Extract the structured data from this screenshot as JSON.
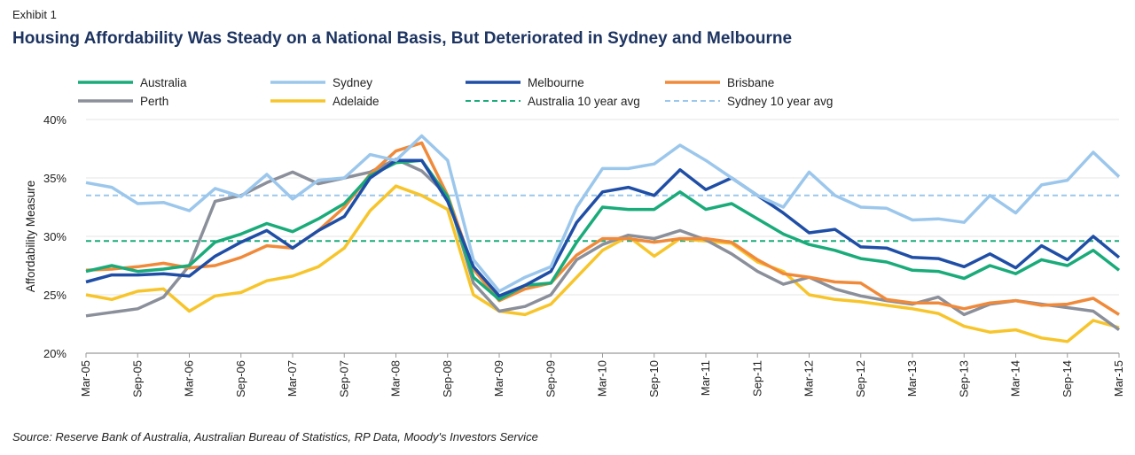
{
  "exhibit": "Exhibit 1",
  "title": "Housing Affordability Was Steady on a National Basis, But Deteriorated in Sydney and Melbourne",
  "source": "Source: Reserve Bank of Australia, Australian Bureau of Statistics, RP Data, Moody's Investors Service",
  "chart_data": {
    "type": "line",
    "title": "Housing Affordability Was Steady on a National Basis, But Deteriorated in Sydney and Melbourne",
    "ylabel": "Affordability Measure",
    "xlabel": "",
    "ylim": [
      20,
      40
    ],
    "yticks": [
      "20%",
      "25%",
      "30%",
      "35%",
      "40%"
    ],
    "ytick_values": [
      20,
      25,
      30,
      35,
      40
    ],
    "grid": true,
    "legend_position": "top",
    "xtick_labels": [
      "Mar-05",
      "Sep-05",
      "Mar-06",
      "Sep-06",
      "Mar-07",
      "Sep-07",
      "Mar-08",
      "Sep-08",
      "Mar-09",
      "Sep-09",
      "Mar-10",
      "Sep-10",
      "Mar-11",
      "Sep-11",
      "Mar-12",
      "Sep-12",
      "Mar-13",
      "Sep-13",
      "Mar-14",
      "Sep-14",
      "Mar-15"
    ],
    "x": [
      "Mar-05",
      "Jun-05",
      "Sep-05",
      "Dec-05",
      "Mar-06",
      "Jun-06",
      "Sep-06",
      "Dec-06",
      "Mar-07",
      "Jun-07",
      "Sep-07",
      "Dec-07",
      "Mar-08",
      "Jun-08",
      "Sep-08",
      "Dec-08",
      "Mar-09",
      "Jun-09",
      "Sep-09",
      "Dec-09",
      "Mar-10",
      "Jun-10",
      "Sep-10",
      "Dec-10",
      "Mar-11",
      "Jun-11",
      "Sep-11",
      "Dec-11",
      "Mar-12",
      "Jun-12",
      "Sep-12",
      "Dec-12",
      "Mar-13",
      "Jun-13",
      "Sep-13",
      "Dec-13",
      "Mar-14",
      "Jun-14",
      "Sep-14",
      "Dec-14",
      "Mar-15"
    ],
    "series": [
      {
        "name": "Australia",
        "color": "#1aab7a",
        "dashed": false,
        "values": [
          27.0,
          27.5,
          27.0,
          27.2,
          27.5,
          29.5,
          30.2,
          31.1,
          30.4,
          31.5,
          32.8,
          35.2,
          36.3,
          36.5,
          33.4,
          26.5,
          24.6,
          25.8,
          26.0,
          29.5,
          32.5,
          32.3,
          32.3,
          33.8,
          32.3,
          32.8,
          31.5,
          30.2,
          29.3,
          28.8,
          28.1,
          27.8,
          27.1,
          27.0,
          26.4,
          27.5,
          26.8,
          28.0,
          27.5,
          28.8,
          27.1
        ]
      },
      {
        "name": "Sydney",
        "color": "#9cc7ec",
        "dashed": false,
        "values": [
          34.6,
          34.2,
          32.8,
          32.9,
          32.2,
          34.1,
          33.4,
          35.3,
          33.2,
          34.8,
          35.0,
          37.0,
          36.5,
          38.6,
          36.5,
          28.0,
          25.3,
          26.5,
          27.4,
          32.5,
          35.8,
          35.8,
          36.2,
          37.8,
          36.5,
          35.0,
          33.5,
          32.5,
          35.5,
          33.5,
          32.5,
          32.4,
          31.4,
          31.5,
          31.2,
          33.5,
          32.0,
          34.4,
          34.8,
          37.2,
          35.1
        ]
      },
      {
        "name": "Melbourne",
        "color": "#1f4ea6",
        "dashed": false,
        "values": [
          26.1,
          26.7,
          26.7,
          26.8,
          26.6,
          28.3,
          29.5,
          30.5,
          29.0,
          30.5,
          31.7,
          35.0,
          36.5,
          36.5,
          33.0,
          27.4,
          24.9,
          25.8,
          27.0,
          31.2,
          33.8,
          34.2,
          33.5,
          35.7,
          34.0,
          35.0,
          33.5,
          32.0,
          30.3,
          30.6,
          29.1,
          29.0,
          28.2,
          28.1,
          27.4,
          28.5,
          27.3,
          29.2,
          28.0,
          30.0,
          28.2
        ]
      },
      {
        "name": "Brisbane",
        "color": "#f08a3a",
        "dashed": false,
        "values": [
          27.1,
          27.2,
          27.4,
          27.7,
          27.3,
          27.5,
          28.2,
          29.2,
          29.0,
          30.5,
          32.5,
          35.3,
          37.3,
          38.0,
          33.5,
          27.2,
          24.5,
          25.5,
          26.0,
          28.4,
          29.8,
          29.8,
          29.5,
          29.8,
          29.8,
          29.5,
          28.0,
          26.8,
          26.5,
          26.1,
          26.0,
          24.6,
          24.3,
          24.3,
          23.8,
          24.3,
          24.5,
          24.1,
          24.2,
          24.7,
          23.3
        ]
      },
      {
        "name": "Perth",
        "color": "#8a8f9a",
        "dashed": false,
        "values": [
          23.2,
          23.5,
          23.8,
          24.8,
          27.5,
          33.0,
          33.5,
          34.6,
          35.5,
          34.5,
          35.0,
          35.5,
          36.6,
          35.6,
          33.5,
          26.0,
          23.6,
          24.0,
          25.0,
          28.0,
          29.3,
          30.1,
          29.8,
          30.5,
          29.7,
          28.5,
          27.0,
          25.9,
          26.5,
          25.5,
          24.9,
          24.5,
          24.2,
          24.8,
          23.3,
          24.2,
          24.5,
          24.2,
          23.9,
          23.6,
          22.0
        ]
      },
      {
        "name": "Adelaide",
        "color": "#f7c52b",
        "dashed": false,
        "values": [
          25.0,
          24.6,
          25.3,
          25.5,
          23.6,
          24.9,
          25.2,
          26.2,
          26.6,
          27.4,
          29.0,
          32.2,
          34.3,
          33.5,
          32.3,
          25.0,
          23.6,
          23.3,
          24.2,
          26.5,
          28.8,
          30.0,
          28.3,
          29.8,
          29.6,
          29.4,
          27.8,
          27.0,
          25.0,
          24.6,
          24.4,
          24.1,
          23.8,
          23.4,
          22.3,
          21.8,
          22.0,
          21.3,
          21.0,
          22.8,
          22.2
        ]
      },
      {
        "name": "Australia 10 year avg",
        "color": "#1aab7a",
        "dashed": true,
        "constant": 29.6
      },
      {
        "name": "Sydney 10 year avg",
        "color": "#9cc7ec",
        "dashed": true,
        "constant": 33.5
      }
    ]
  }
}
